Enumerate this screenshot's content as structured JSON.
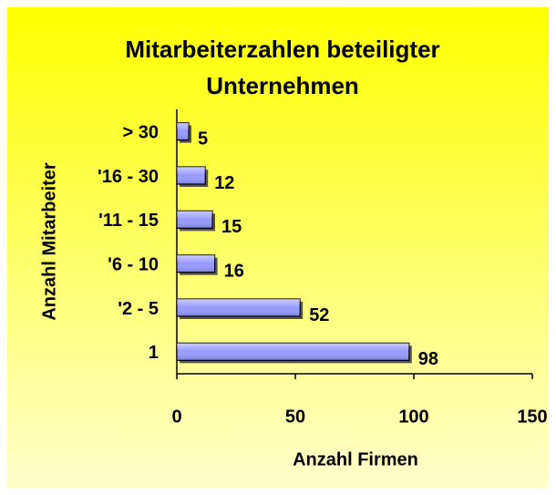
{
  "chart_data": {
    "type": "barh",
    "title": "Mitarbeiterzahlen beteiligter Unternehmen",
    "xlabel": "Anzahl Firmen",
    "ylabel": "Anzahl Mitarbeiter",
    "categories": [
      "1",
      "'2 - 5",
      "'6 - 10",
      "'11 - 15",
      "'16 - 30",
      "> 30"
    ],
    "values": [
      98,
      52,
      16,
      15,
      12,
      5
    ],
    "color": "#9999ff",
    "xlim": [
      0,
      150
    ],
    "xticks": [
      0,
      50,
      100,
      150
    ]
  }
}
